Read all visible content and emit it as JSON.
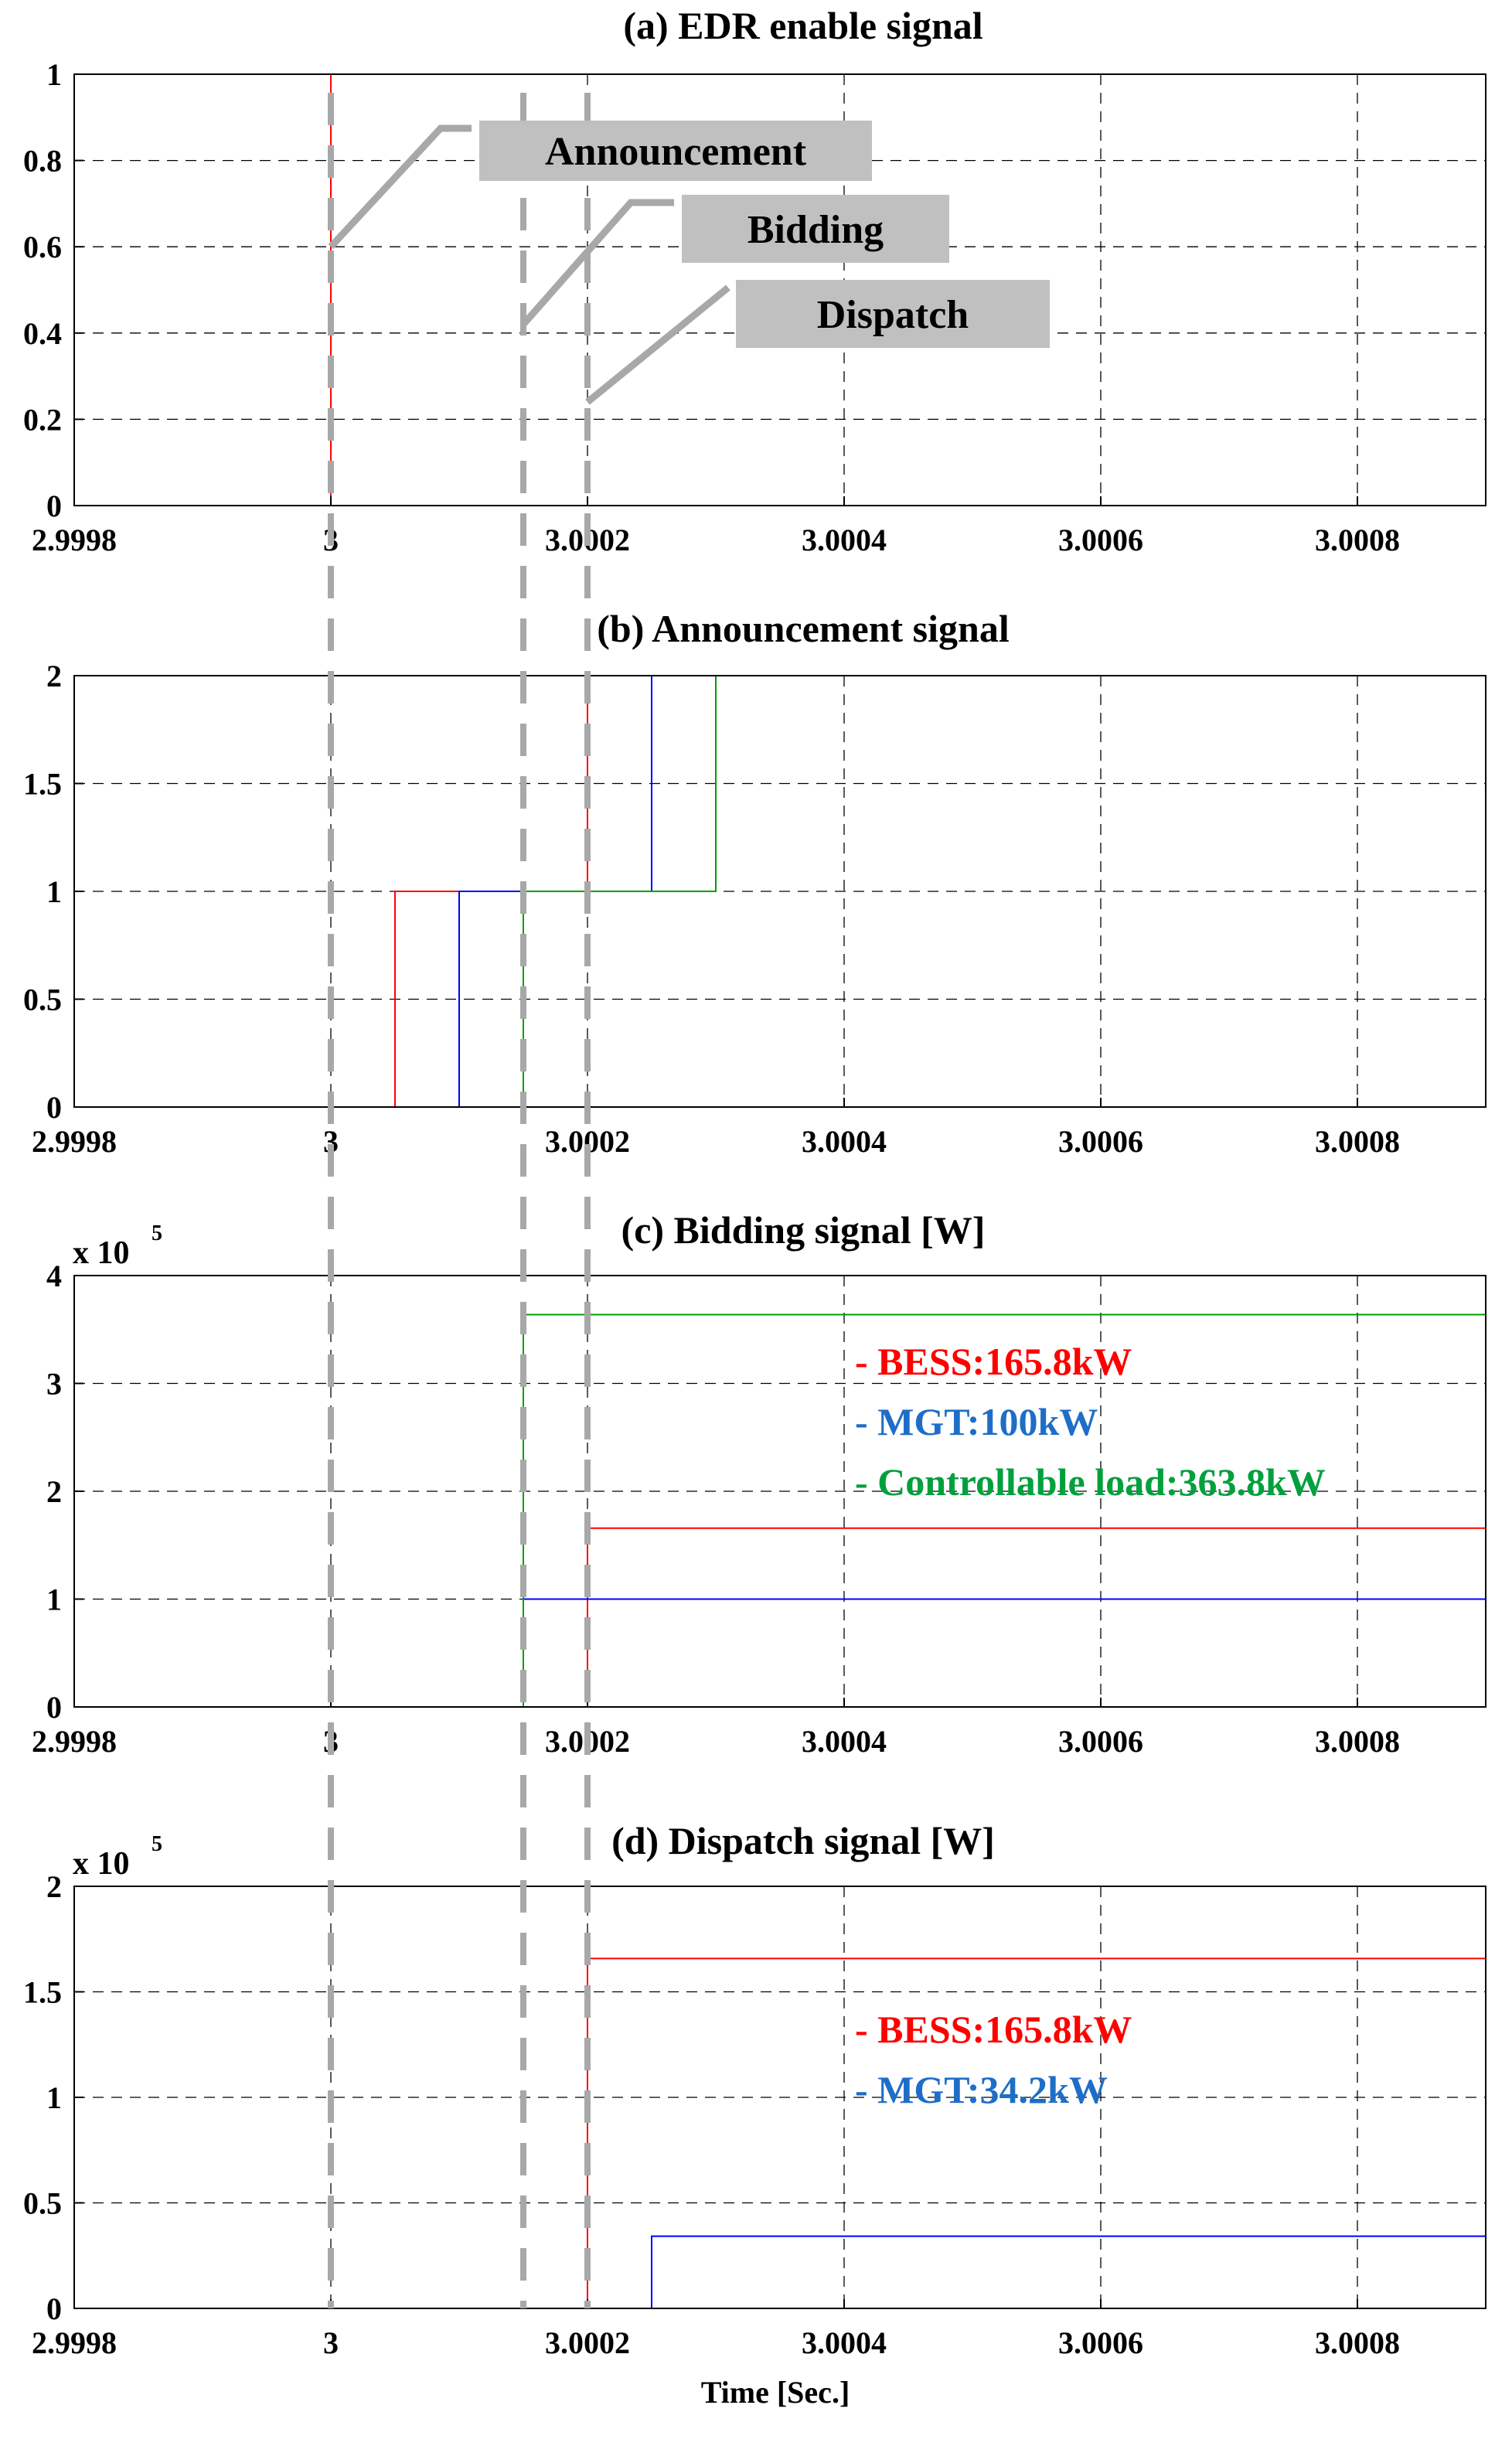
{
  "chart_data": [
    {
      "type": "line",
      "title": "(a) EDR enable signal",
      "xlim": [
        2.9998,
        3.0009
      ],
      "ylim": [
        0,
        1
      ],
      "yticks": [
        "0",
        "0.2",
        "0.4",
        "0.6",
        "0.8",
        "1"
      ],
      "ytick_values": [
        0,
        0.2,
        0.4,
        0.6,
        0.8,
        1
      ],
      "grid": true,
      "series": [
        {
          "color": "#ff0000",
          "x": [
            2.9998,
            3.0,
            3.0,
            3.0009
          ],
          "y": [
            0,
            0,
            1,
            1
          ]
        }
      ],
      "annotations": [
        "Announcement",
        "Bidding",
        "Dispatch"
      ]
    },
    {
      "type": "line",
      "title": "(b) Announcement signal",
      "xlim": [
        2.9998,
        3.0009
      ],
      "ylim": [
        0,
        2
      ],
      "yticks": [
        "0",
        "0.5",
        "1",
        "1.5",
        "2"
      ],
      "ytick_values": [
        0,
        0.5,
        1,
        1.5,
        2
      ],
      "grid": true,
      "series": [
        {
          "color": "#ff0000",
          "x": [
            2.9998,
            3.00005,
            3.00005,
            3.0002,
            3.0002,
            3.0009
          ],
          "y": [
            0,
            0,
            1,
            1,
            2,
            2
          ]
        },
        {
          "color": "#0000ff",
          "x": [
            2.9998,
            3.0001,
            3.0001,
            3.00025,
            3.00025,
            3.0009
          ],
          "y": [
            0,
            0,
            1,
            1,
            2,
            2
          ]
        },
        {
          "color": "#00a000",
          "x": [
            2.9998,
            3.00015,
            3.00015,
            3.0003,
            3.0003,
            3.0009
          ],
          "y": [
            0,
            0,
            1,
            1,
            2,
            2
          ]
        }
      ]
    },
    {
      "type": "line",
      "title": "(c) Bidding signal [W]",
      "exponent": "5",
      "xlim": [
        2.9998,
        3.0009
      ],
      "ylim": [
        0,
        400000
      ],
      "yticks": [
        "0",
        "1",
        "2",
        "3",
        "4"
      ],
      "ytick_values": [
        0,
        100000,
        200000,
        300000,
        400000
      ],
      "grid": true,
      "series": [
        {
          "name": "- BESS:165.8kW",
          "color": "#ff0000",
          "x": [
            2.9998,
            3.0002,
            3.0002,
            3.0009
          ],
          "y": [
            0,
            0,
            165800,
            165800
          ]
        },
        {
          "name": "- MGT:100kW",
          "color": "#0000ff",
          "x": [
            2.9998,
            3.00015,
            3.00015,
            3.0009
          ],
          "y": [
            0,
            0,
            100000,
            100000
          ]
        },
        {
          "name": "- Controllable load:363.8kW",
          "color": "#00a000",
          "x": [
            2.9998,
            3.00015,
            3.00015,
            3.0009
          ],
          "y": [
            0,
            0,
            363800,
            363800
          ]
        }
      ],
      "legend_colors": [
        "#ff0000",
        "#1e6ec8",
        "#00a03c"
      ]
    },
    {
      "type": "line",
      "title": "(d) Dispatch signal [W]",
      "exponent": "5",
      "xlim": [
        2.9998,
        3.0009
      ],
      "ylim": [
        0,
        200000
      ],
      "yticks": [
        "0",
        "0.5",
        "1",
        "1.5",
        "2"
      ],
      "ytick_values": [
        0,
        50000,
        100000,
        150000,
        200000
      ],
      "grid": true,
      "series": [
        {
          "name": "- BESS:165.8kW",
          "color": "#ff0000",
          "x": [
            2.9998,
            3.0002,
            3.0002,
            3.0009
          ],
          "y": [
            0,
            0,
            165800,
            165800
          ]
        },
        {
          "name": "- MGT:34.2kW",
          "color": "#0000ff",
          "x": [
            2.9998,
            3.00025,
            3.00025,
            3.0009
          ],
          "y": [
            0,
            0,
            34200,
            34200
          ]
        },
        {
          "color": "#00a000",
          "x": [
            2.9998,
            3.0009
          ],
          "y": [
            0,
            0
          ]
        }
      ],
      "legend_colors": [
        "#ff0000",
        "#1e6ec8"
      ]
    }
  ],
  "xticks": [
    "2.9998",
    "3",
    "3.0002",
    "3.0004",
    "3.0006",
    "3.0008"
  ],
  "xtick_values": [
    2.9998,
    3.0,
    3.0002,
    3.0004,
    3.0006,
    3.0008
  ],
  "xlabel": "Time [Sec.]",
  "multiplier": "x 10",
  "phase_markers": [
    3.0,
    3.00015,
    3.0002
  ]
}
